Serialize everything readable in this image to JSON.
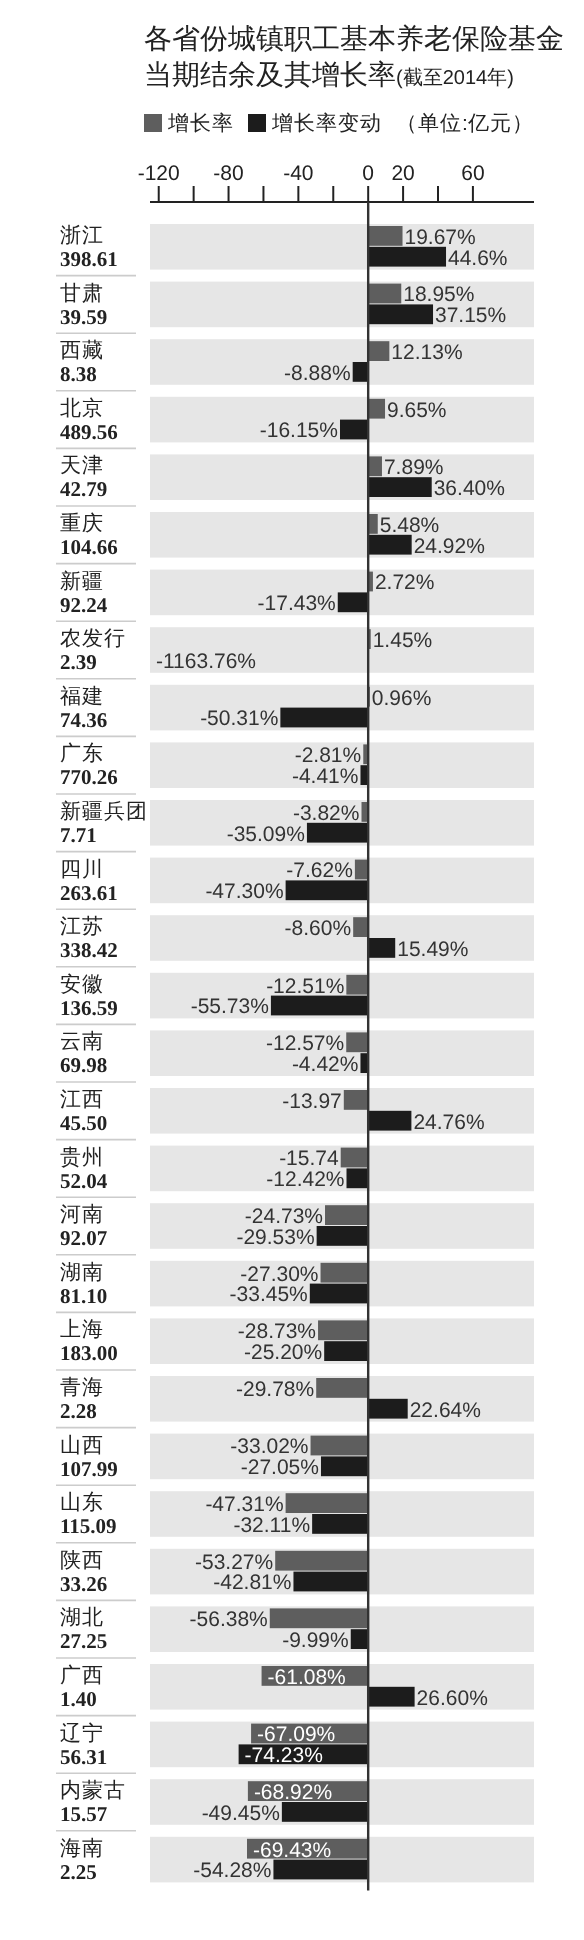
{
  "chart_data": {
    "type": "bar",
    "orientation": "horizontal",
    "title": "各省份城镇职工基本养老保险基金当期结余及其增长率",
    "subtitle": "(截至2014年)",
    "annotations": [
      "（单位:亿元）"
    ],
    "legend": "top left",
    "categories": [
      "浙江\n398.61",
      "甘肃\n39.59",
      "西藏\n8.38",
      "北京\n489.56",
      "天津\n42.79",
      "重庆\n104.66",
      "新疆\n92.24",
      "农发行\n2.39",
      "福建\n74.36",
      "广东\n770.26",
      "新疆兵团\n7.71",
      "四川\n263.61",
      "江苏\n338.42",
      "安徽\n136.59",
      "云南\n69.98",
      "江西\n45.50",
      "贵州\n52.04",
      "河南\n92.07",
      "湖南\n81.10",
      "上海\n183.00",
      "青海\n2.28",
      "山西\n107.99",
      "山东\n115.09",
      "陕西\n33.26",
      "湖北\n27.25",
      "广西\n1.40",
      "辽宁\n56.31",
      "内蒙古\n15.57",
      "海南\n2.25"
    ],
    "series": [
      {
        "name": "增长率",
        "color": "#5e5e5e",
        "values": [
          19.67,
          18.95,
          12.13,
          9.65,
          7.89,
          5.48,
          2.72,
          1.45,
          0.96,
          -2.81,
          -3.82,
          -7.62,
          -8.6,
          -12.51,
          -12.57,
          -13.97,
          -15.74,
          -24.73,
          -27.3,
          -28.73,
          -29.78,
          -33.02,
          -47.31,
          -53.27,
          -56.38,
          -61.08,
          -67.09,
          -68.92,
          -69.43
        ],
        "value_labels": [
          "19.67%",
          "18.95%",
          "12.13%",
          "9.65%",
          "7.89%",
          "5.48%",
          "2.72%",
          "1.45%",
          "0.96%",
          "-2.81%",
          "-3.82%",
          "-7.62%",
          "-8.60%",
          "-12.51%",
          "-12.57%",
          "-13.97",
          "-15.74",
          "-24.73%",
          "-27.30%",
          "-28.73%",
          "-29.78%",
          "-33.02%",
          "-47.31%",
          "-53.27%",
          "-56.38%",
          "-61.08%",
          "-67.09%",
          "-68.92%",
          "-69.43%"
        ]
      },
      {
        "name": "增长率变动",
        "color": "#1c1c1c",
        "values": [
          44.6,
          37.15,
          -8.88,
          -16.15,
          36.4,
          24.92,
          -17.43,
          null,
          -50.31,
          -4.41,
          -35.09,
          -47.3,
          15.49,
          -55.73,
          -4.42,
          24.76,
          -12.42,
          -29.53,
          -33.45,
          -25.2,
          22.64,
          -27.05,
          -32.11,
          -42.81,
          -9.99,
          26.6,
          -74.23,
          -49.45,
          -54.28
        ],
        "value_labels": [
          "44.6%",
          "37.15%",
          "-8.88%",
          "-16.15%",
          "36.40%",
          "24.92%",
          "-17.43%",
          "-1163.76%",
          "-50.31%",
          "-4.41%",
          "-35.09%",
          "-47.30%",
          "15.49%",
          "-55.73%",
          "-4.42%",
          "24.76%",
          "-12.42%",
          "-29.53%",
          "-33.45%",
          "-25.20%",
          "22.64%",
          "-27.05%",
          "-32.11%",
          "-42.81%",
          "-9.99%",
          "26.60%",
          "-74.23%",
          "-49.45%",
          "-54.28%"
        ]
      }
    ],
    "xlim": [
      -125,
      95
    ],
    "xticks": [
      {
        "value": -120,
        "label": "-120"
      },
      {
        "value": -100,
        "label": null
      },
      {
        "value": -80,
        "label": "-80"
      },
      {
        "value": -60,
        "label": null
      },
      {
        "value": -40,
        "label": "-40"
      },
      {
        "value": -20,
        "label": null
      },
      0,
      20,
      {
        "value": 40,
        "label": null
      },
      60
    ]
  }
}
